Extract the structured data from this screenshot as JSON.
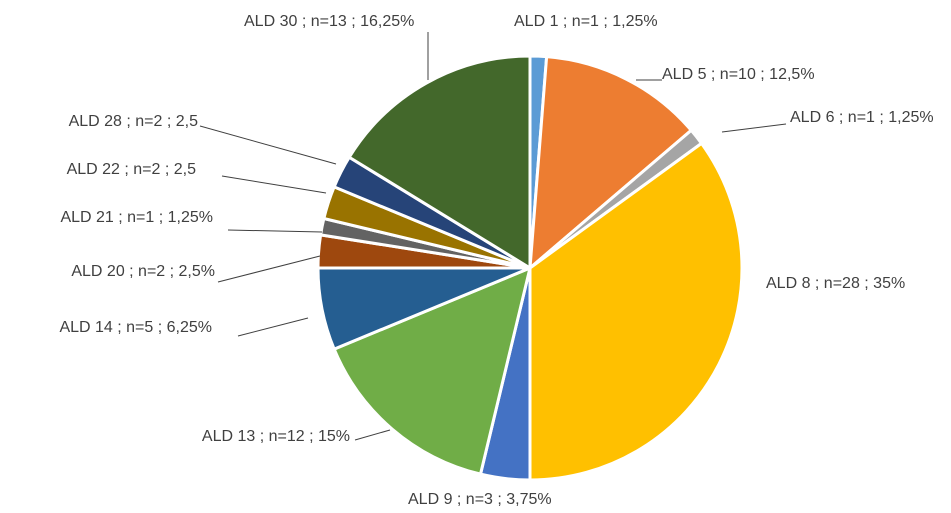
{
  "chart_data": {
    "type": "pie",
    "values": [
      1.25,
      12.5,
      1.25,
      35,
      3.75,
      15,
      6.25,
      2.5,
      1.25,
      2.5,
      2.5,
      16.25
    ],
    "value_labels": [
      "ALD 1 ; n=1 ; 1,25%",
      "ALD 5 ; n=10 ; 12,5%",
      "ALD 6 ; n=1 ; 1,25%",
      "ALD 8 ; n=28 ; 35%",
      "ALD 9 ; n=3 ; 3,75%",
      "ALD 13 ; n=12 ; 15%",
      "ALD 14 ; n=5 ; 6,25%",
      "ALD 20 ; n=2 ; 2,5%",
      "ALD 21 ; n=1 ; 1,25%",
      "ALD 22 ; n=2 ; 2,5",
      "ALD 28 ; n=2 ; 2,5",
      "ALD 30 ; n=13 ; 16,25%"
    ],
    "colors": [
      "#5b9bd5",
      "#ed7d31",
      "#a5a5a5",
      "#ffc000",
      "#4472c4",
      "#70ad47",
      "#255e91",
      "#9e480e",
      "#636363",
      "#997300",
      "#264478",
      "#43682b"
    ]
  }
}
